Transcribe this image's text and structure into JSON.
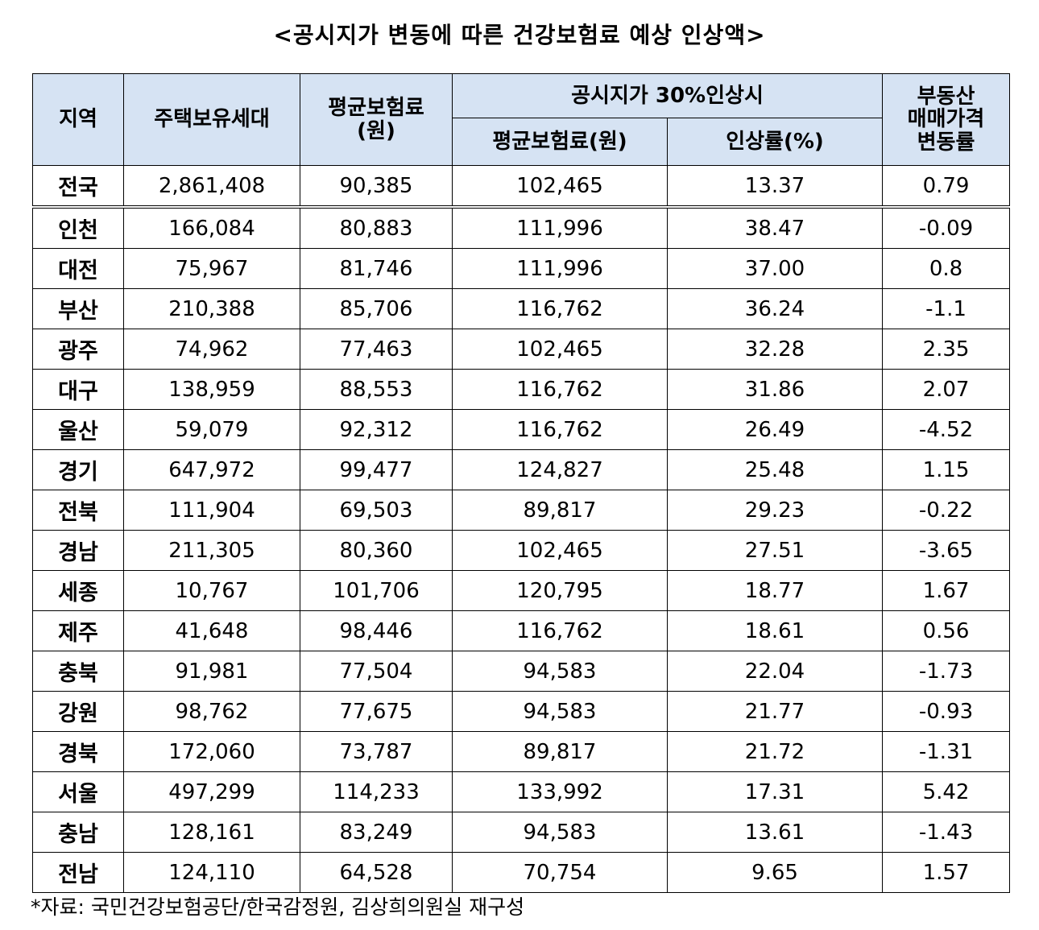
{
  "title": "<공시지가 변동에 따른 건강보험료 예상 인상액>",
  "headers": {
    "region": "지역",
    "households": "주택보유세대",
    "avg_premium_line1": "평균보험료",
    "avg_premium_line2": "(원)",
    "group_30": "공시지가 30%인상시",
    "new_premium": "평균보험료(원)",
    "increase_rate": "인상률(%)",
    "realestate_line1": "부동산",
    "realestate_line2": "매매가격",
    "realestate_line3": "변동률"
  },
  "rows": [
    {
      "region": "전국",
      "households": "2,861,408",
      "avg_premium": "90,385",
      "new_premium": "102,465",
      "rate": "13.37",
      "price_change": "0.79"
    },
    {
      "region": "인천",
      "households": "166,084",
      "avg_premium": "80,883",
      "new_premium": "111,996",
      "rate": "38.47",
      "price_change": "-0.09"
    },
    {
      "region": "대전",
      "households": "75,967",
      "avg_premium": "81,746",
      "new_premium": "111,996",
      "rate": "37.00",
      "price_change": "0.8"
    },
    {
      "region": "부산",
      "households": "210,388",
      "avg_premium": "85,706",
      "new_premium": "116,762",
      "rate": "36.24",
      "price_change": "-1.1"
    },
    {
      "region": "광주",
      "households": "74,962",
      "avg_premium": "77,463",
      "new_premium": "102,465",
      "rate": "32.28",
      "price_change": "2.35"
    },
    {
      "region": "대구",
      "households": "138,959",
      "avg_premium": "88,553",
      "new_premium": "116,762",
      "rate": "31.86",
      "price_change": "2.07"
    },
    {
      "region": "울산",
      "households": "59,079",
      "avg_premium": "92,312",
      "new_premium": "116,762",
      "rate": "26.49",
      "price_change": "-4.52"
    },
    {
      "region": "경기",
      "households": "647,972",
      "avg_premium": "99,477",
      "new_premium": "124,827",
      "rate": "25.48",
      "price_change": "1.15"
    },
    {
      "region": "전북",
      "households": "111,904",
      "avg_premium": "69,503",
      "new_premium": "89,817",
      "rate": "29.23",
      "price_change": "-0.22"
    },
    {
      "region": "경남",
      "households": "211,305",
      "avg_premium": "80,360",
      "new_premium": "102,465",
      "rate": "27.51",
      "price_change": "-3.65"
    },
    {
      "region": "세종",
      "households": "10,767",
      "avg_premium": "101,706",
      "new_premium": "120,795",
      "rate": "18.77",
      "price_change": "1.67"
    },
    {
      "region": "제주",
      "households": "41,648",
      "avg_premium": "98,446",
      "new_premium": "116,762",
      "rate": "18.61",
      "price_change": "0.56"
    },
    {
      "region": "충북",
      "households": "91,981",
      "avg_premium": "77,504",
      "new_premium": "94,583",
      "rate": "22.04",
      "price_change": "-1.73"
    },
    {
      "region": "강원",
      "households": "98,762",
      "avg_premium": "77,675",
      "new_premium": "94,583",
      "rate": "21.77",
      "price_change": "-0.93"
    },
    {
      "region": "경북",
      "households": "172,060",
      "avg_premium": "73,787",
      "new_premium": "89,817",
      "rate": "21.72",
      "price_change": "-1.31"
    },
    {
      "region": "서울",
      "households": "497,299",
      "avg_premium": "114,233",
      "new_premium": "133,992",
      "rate": "17.31",
      "price_change": "5.42"
    },
    {
      "region": "충남",
      "households": "128,161",
      "avg_premium": "83,249",
      "new_premium": "94,583",
      "rate": "13.61",
      "price_change": "-1.43"
    },
    {
      "region": "전남",
      "households": "124,110",
      "avg_premium": "64,528",
      "new_premium": "70,754",
      "rate": "9.65",
      "price_change": "1.57"
    }
  ],
  "source": "*자료: 국민건강보험공단/한국감정원, 김상희의원실 재구성"
}
